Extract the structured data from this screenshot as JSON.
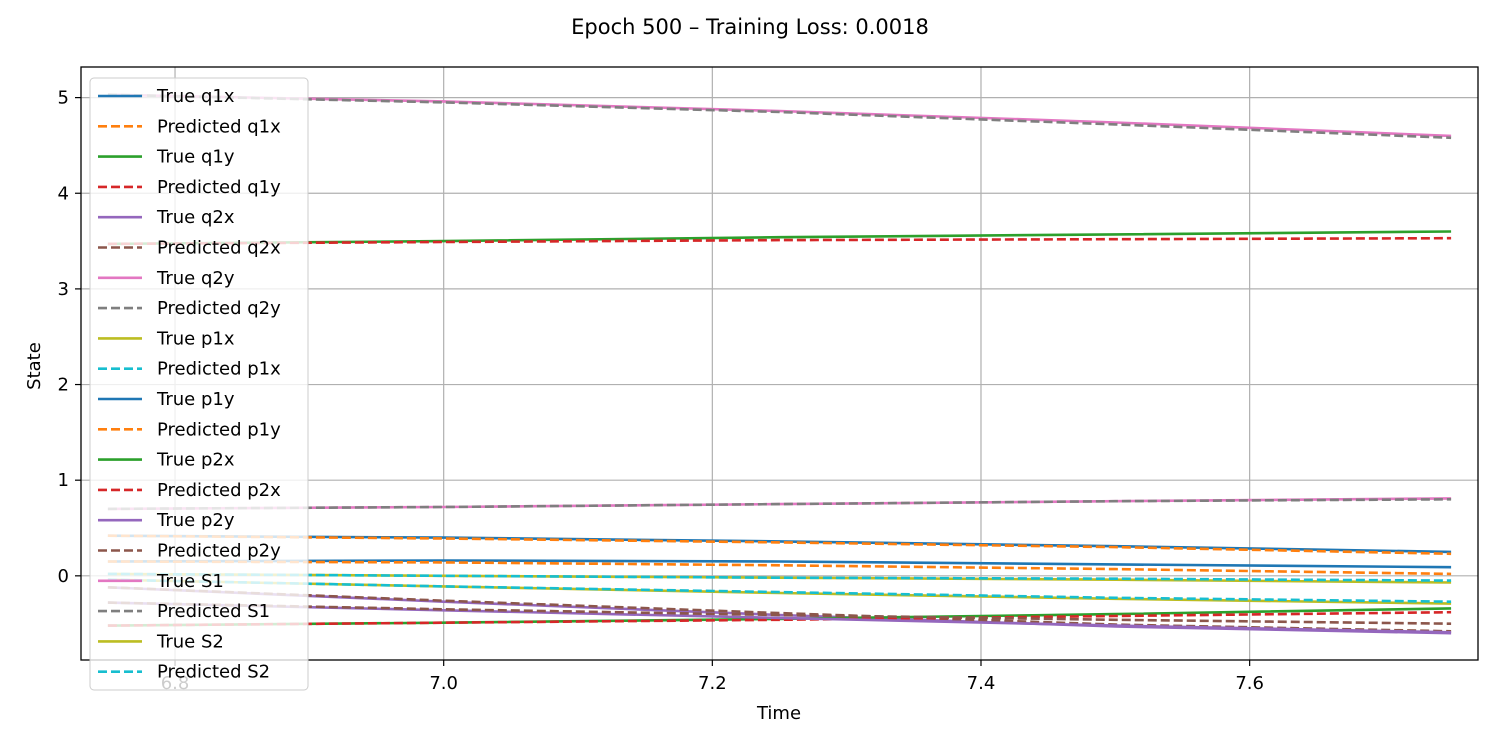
{
  "chart_data": {
    "type": "line",
    "title": "Epoch 500 – Training Loss: 0.0018",
    "xlabel": "Time",
    "ylabel": "State",
    "xlim": [
      6.73,
      7.77
    ],
    "ylim": [
      -0.88,
      5.32
    ],
    "xticks": [
      6.8,
      7.0,
      7.2,
      7.4,
      7.6
    ],
    "xtick_labels": [
      "6.8",
      "7.0",
      "7.2",
      "7.4",
      "7.6"
    ],
    "yticks": [
      0,
      1,
      2,
      3,
      4,
      5
    ],
    "ytick_labels": [
      "0",
      "1",
      "2",
      "3",
      "4",
      "5"
    ],
    "grid": true,
    "legend_position": "upper-left",
    "x": [
      6.75,
      7.0,
      7.25,
      7.5,
      7.75
    ],
    "series": [
      {
        "name": "True q1x",
        "color": "#1f77b4",
        "dash": false,
        "values": [
          0.15,
          0.16,
          0.15,
          0.12,
          0.09
        ]
      },
      {
        "name": "Predicted q1x",
        "color": "#ff7f0e",
        "dash": true,
        "values": [
          0.15,
          0.14,
          0.11,
          0.07,
          0.02
        ]
      },
      {
        "name": "True q1y",
        "color": "#2ca02c",
        "dash": false,
        "values": [
          3.47,
          3.5,
          3.54,
          3.57,
          3.6
        ]
      },
      {
        "name": "Predicted q1y",
        "color": "#d62728",
        "dash": true,
        "values": [
          3.47,
          3.49,
          3.51,
          3.52,
          3.53
        ]
      },
      {
        "name": "True q2x",
        "color": "#9467bd",
        "dash": false,
        "values": [
          -0.12,
          -0.27,
          -0.41,
          -0.53,
          -0.6
        ]
      },
      {
        "name": "Predicted q2x",
        "color": "#8c564b",
        "dash": true,
        "values": [
          -0.12,
          -0.26,
          -0.39,
          -0.51,
          -0.58
        ]
      },
      {
        "name": "True q2y",
        "color": "#e377c2",
        "dash": false,
        "values": [
          5.03,
          4.96,
          4.86,
          4.74,
          4.6
        ]
      },
      {
        "name": "Predicted q2y",
        "color": "#7f7f7f",
        "dash": true,
        "values": [
          5.03,
          4.95,
          4.85,
          4.72,
          4.58
        ]
      },
      {
        "name": "True p1x",
        "color": "#bcbd22",
        "dash": false,
        "values": [
          -0.04,
          -0.11,
          -0.18,
          -0.24,
          -0.29
        ]
      },
      {
        "name": "Predicted p1x",
        "color": "#17becf",
        "dash": true,
        "values": [
          -0.04,
          -0.11,
          -0.17,
          -0.23,
          -0.27
        ]
      },
      {
        "name": "True p1y",
        "color": "#1f77b4",
        "dash": false,
        "values": [
          0.42,
          0.4,
          0.36,
          0.31,
          0.25
        ]
      },
      {
        "name": "Predicted p1y",
        "color": "#ff7f0e",
        "dash": true,
        "values": [
          0.42,
          0.39,
          0.35,
          0.3,
          0.23
        ]
      },
      {
        "name": "True p2x",
        "color": "#2ca02c",
        "dash": false,
        "values": [
          -0.52,
          -0.49,
          -0.45,
          -0.4,
          -0.34
        ]
      },
      {
        "name": "Predicted p2x",
        "color": "#d62728",
        "dash": true,
        "values": [
          -0.52,
          -0.49,
          -0.46,
          -0.42,
          -0.38
        ]
      },
      {
        "name": "True p2y",
        "color": "#9467bd",
        "dash": false,
        "values": [
          -0.28,
          -0.36,
          -0.44,
          -0.52,
          -0.59
        ]
      },
      {
        "name": "Predicted p2y",
        "color": "#8c564b",
        "dash": true,
        "values": [
          -0.28,
          -0.35,
          -0.41,
          -0.46,
          -0.5
        ]
      },
      {
        "name": "True S1",
        "color": "#e377c2",
        "dash": false,
        "values": [
          0.7,
          0.72,
          0.75,
          0.78,
          0.81
        ]
      },
      {
        "name": "Predicted S1",
        "color": "#7f7f7f",
        "dash": true,
        "values": [
          0.7,
          0.72,
          0.75,
          0.78,
          0.8
        ]
      },
      {
        "name": "True S2",
        "color": "#bcbd22",
        "dash": false,
        "values": [
          0.02,
          0.0,
          -0.02,
          -0.04,
          -0.07
        ]
      },
      {
        "name": "Predicted S2",
        "color": "#17becf",
        "dash": true,
        "values": [
          0.02,
          0.0,
          -0.02,
          -0.03,
          -0.05
        ]
      }
    ]
  }
}
